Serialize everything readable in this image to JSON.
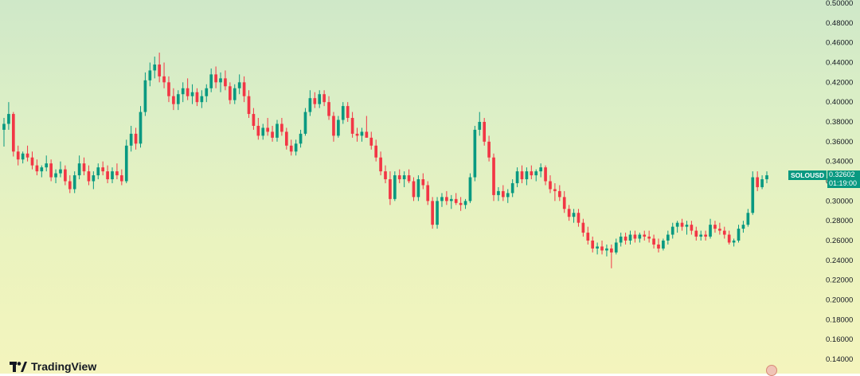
{
  "branding": {
    "logo_text": "TradingView",
    "logo_icon": "tradingview-logo-icon"
  },
  "price_label": {
    "symbol": "SOLOUSD",
    "price": "0.32602",
    "countdown": "01:19:00",
    "color": "#089981"
  },
  "colors": {
    "up": "#089981",
    "down": "#f23645",
    "axis_text": "#131722"
  },
  "chart_data": {
    "type": "candlestick",
    "title": "",
    "symbol": "SOLOUSD",
    "y_axis": {
      "position": "right",
      "ylim": [
        0.13,
        0.5
      ],
      "ticks": [
        "0.50000",
        "0.48000",
        "0.46000",
        "0.44000",
        "0.42000",
        "0.40000",
        "0.38000",
        "0.36000",
        "0.34000",
        "0.32000",
        "0.30000",
        "0.28000",
        "0.26000",
        "0.24000",
        "0.22000",
        "0.20000",
        "0.18000",
        "0.16000",
        "0.14000"
      ]
    },
    "grid": false,
    "last_price": 0.32602,
    "candles_ohlc": [
      [
        0.372,
        0.384,
        0.355,
        0.378
      ],
      [
        0.378,
        0.4,
        0.372,
        0.388
      ],
      [
        0.388,
        0.39,
        0.345,
        0.35
      ],
      [
        0.35,
        0.356,
        0.336,
        0.342
      ],
      [
        0.342,
        0.35,
        0.338,
        0.348
      ],
      [
        0.348,
        0.356,
        0.34,
        0.344
      ],
      [
        0.344,
        0.35,
        0.332,
        0.336
      ],
      [
        0.336,
        0.342,
        0.326,
        0.33
      ],
      [
        0.33,
        0.336,
        0.324,
        0.334
      ],
      [
        0.334,
        0.346,
        0.33,
        0.338
      ],
      [
        0.338,
        0.342,
        0.32,
        0.324
      ],
      [
        0.324,
        0.332,
        0.318,
        0.328
      ],
      [
        0.328,
        0.34,
        0.324,
        0.332
      ],
      [
        0.332,
        0.336,
        0.316,
        0.32
      ],
      [
        0.32,
        0.326,
        0.308,
        0.312
      ],
      [
        0.312,
        0.33,
        0.308,
        0.326
      ],
      [
        0.326,
        0.346,
        0.322,
        0.338
      ],
      [
        0.338,
        0.344,
        0.326,
        0.33
      ],
      [
        0.33,
        0.336,
        0.316,
        0.32
      ],
      [
        0.32,
        0.33,
        0.312,
        0.326
      ],
      [
        0.326,
        0.338,
        0.322,
        0.334
      ],
      [
        0.334,
        0.34,
        0.326,
        0.33
      ],
      [
        0.33,
        0.336,
        0.318,
        0.322
      ],
      [
        0.322,
        0.334,
        0.318,
        0.33
      ],
      [
        0.33,
        0.338,
        0.322,
        0.326
      ],
      [
        0.326,
        0.332,
        0.316,
        0.32
      ],
      [
        0.32,
        0.362,
        0.318,
        0.356
      ],
      [
        0.356,
        0.376,
        0.35,
        0.368
      ],
      [
        0.368,
        0.374,
        0.352,
        0.358
      ],
      [
        0.358,
        0.396,
        0.354,
        0.39
      ],
      [
        0.39,
        0.43,
        0.386,
        0.422
      ],
      [
        0.422,
        0.44,
        0.416,
        0.432
      ],
      [
        0.432,
        0.446,
        0.424,
        0.438
      ],
      [
        0.438,
        0.45,
        0.42,
        0.426
      ],
      [
        0.426,
        0.44,
        0.414,
        0.42
      ],
      [
        0.42,
        0.426,
        0.4,
        0.406
      ],
      [
        0.406,
        0.414,
        0.392,
        0.398
      ],
      [
        0.398,
        0.412,
        0.392,
        0.408
      ],
      [
        0.408,
        0.42,
        0.4,
        0.414
      ],
      [
        0.414,
        0.424,
        0.402,
        0.406
      ],
      [
        0.406,
        0.418,
        0.398,
        0.41
      ],
      [
        0.41,
        0.414,
        0.396,
        0.4
      ],
      [
        0.4,
        0.412,
        0.394,
        0.406
      ],
      [
        0.406,
        0.418,
        0.4,
        0.414
      ],
      [
        0.414,
        0.434,
        0.41,
        0.428
      ],
      [
        0.428,
        0.436,
        0.414,
        0.42
      ],
      [
        0.42,
        0.43,
        0.41,
        0.424
      ],
      [
        0.424,
        0.432,
        0.412,
        0.416
      ],
      [
        0.416,
        0.42,
        0.398,
        0.402
      ],
      [
        0.402,
        0.418,
        0.398,
        0.414
      ],
      [
        0.414,
        0.428,
        0.408,
        0.42
      ],
      [
        0.42,
        0.426,
        0.4,
        0.406
      ],
      [
        0.406,
        0.412,
        0.384,
        0.388
      ],
      [
        0.388,
        0.394,
        0.372,
        0.376
      ],
      [
        0.376,
        0.384,
        0.362,
        0.366
      ],
      [
        0.366,
        0.378,
        0.362,
        0.374
      ],
      [
        0.374,
        0.384,
        0.366,
        0.37
      ],
      [
        0.37,
        0.376,
        0.36,
        0.364
      ],
      [
        0.364,
        0.382,
        0.36,
        0.378
      ],
      [
        0.378,
        0.384,
        0.366,
        0.37
      ],
      [
        0.37,
        0.374,
        0.352,
        0.356
      ],
      [
        0.356,
        0.362,
        0.346,
        0.35
      ],
      [
        0.35,
        0.362,
        0.346,
        0.358
      ],
      [
        0.358,
        0.372,
        0.354,
        0.368
      ],
      [
        0.368,
        0.394,
        0.366,
        0.39
      ],
      [
        0.39,
        0.412,
        0.386,
        0.404
      ],
      [
        0.404,
        0.41,
        0.394,
        0.398
      ],
      [
        0.398,
        0.412,
        0.394,
        0.408
      ],
      [
        0.408,
        0.412,
        0.396,
        0.4
      ],
      [
        0.4,
        0.406,
        0.382,
        0.386
      ],
      [
        0.386,
        0.39,
        0.36,
        0.366
      ],
      [
        0.366,
        0.386,
        0.364,
        0.382
      ],
      [
        0.382,
        0.4,
        0.378,
        0.396
      ],
      [
        0.396,
        0.4,
        0.38,
        0.384
      ],
      [
        0.384,
        0.39,
        0.364,
        0.368
      ],
      [
        0.368,
        0.374,
        0.36,
        0.366
      ],
      [
        0.366,
        0.374,
        0.36,
        0.37
      ],
      [
        0.37,
        0.386,
        0.364,
        0.364
      ],
      [
        0.364,
        0.37,
        0.352,
        0.356
      ],
      [
        0.356,
        0.362,
        0.34,
        0.344
      ],
      [
        0.344,
        0.35,
        0.326,
        0.33
      ],
      [
        0.33,
        0.336,
        0.318,
        0.322
      ],
      [
        0.322,
        0.33,
        0.296,
        0.302
      ],
      [
        0.302,
        0.33,
        0.3,
        0.326
      ],
      [
        0.326,
        0.332,
        0.318,
        0.322
      ],
      [
        0.322,
        0.33,
        0.314,
        0.326
      ],
      [
        0.326,
        0.332,
        0.318,
        0.32
      ],
      [
        0.32,
        0.324,
        0.3,
        0.304
      ],
      [
        0.304,
        0.326,
        0.3,
        0.322
      ],
      [
        0.322,
        0.328,
        0.312,
        0.316
      ],
      [
        0.316,
        0.32,
        0.296,
        0.3
      ],
      [
        0.3,
        0.304,
        0.272,
        0.276
      ],
      [
        0.276,
        0.304,
        0.272,
        0.3
      ],
      [
        0.3,
        0.308,
        0.294,
        0.304
      ],
      [
        0.304,
        0.31,
        0.296,
        0.3
      ],
      [
        0.3,
        0.306,
        0.292,
        0.302
      ],
      [
        0.302,
        0.308,
        0.296,
        0.298
      ],
      [
        0.298,
        0.304,
        0.29,
        0.296
      ],
      [
        0.296,
        0.302,
        0.292,
        0.3
      ],
      [
        0.3,
        0.328,
        0.298,
        0.324
      ],
      [
        0.324,
        0.376,
        0.32,
        0.372
      ],
      [
        0.372,
        0.39,
        0.366,
        0.38
      ],
      [
        0.38,
        0.384,
        0.356,
        0.36
      ],
      [
        0.36,
        0.366,
        0.34,
        0.344
      ],
      [
        0.344,
        0.348,
        0.3,
        0.306
      ],
      [
        0.306,
        0.314,
        0.3,
        0.31
      ],
      [
        0.31,
        0.316,
        0.3,
        0.304
      ],
      [
        0.304,
        0.312,
        0.298,
        0.308
      ],
      [
        0.308,
        0.322,
        0.304,
        0.318
      ],
      [
        0.318,
        0.334,
        0.314,
        0.33
      ],
      [
        0.33,
        0.336,
        0.318,
        0.322
      ],
      [
        0.322,
        0.334,
        0.316,
        0.33
      ],
      [
        0.33,
        0.336,
        0.322,
        0.326
      ],
      [
        0.326,
        0.332,
        0.32,
        0.33
      ],
      [
        0.33,
        0.338,
        0.324,
        0.334
      ],
      [
        0.334,
        0.336,
        0.316,
        0.32
      ],
      [
        0.32,
        0.326,
        0.308,
        0.312
      ],
      [
        0.312,
        0.318,
        0.3,
        0.31
      ],
      [
        0.31,
        0.316,
        0.3,
        0.304
      ],
      [
        0.304,
        0.31,
        0.288,
        0.292
      ],
      [
        0.292,
        0.296,
        0.28,
        0.284
      ],
      [
        0.284,
        0.292,
        0.278,
        0.288
      ],
      [
        0.288,
        0.292,
        0.274,
        0.278
      ],
      [
        0.278,
        0.282,
        0.264,
        0.268
      ],
      [
        0.268,
        0.274,
        0.256,
        0.26
      ],
      [
        0.26,
        0.264,
        0.248,
        0.252
      ],
      [
        0.252,
        0.258,
        0.246,
        0.254
      ],
      [
        0.254,
        0.26,
        0.246,
        0.25
      ],
      [
        0.25,
        0.256,
        0.244,
        0.252
      ],
      [
        0.252,
        0.256,
        0.232,
        0.248
      ],
      [
        0.248,
        0.262,
        0.246,
        0.258
      ],
      [
        0.258,
        0.268,
        0.254,
        0.264
      ],
      [
        0.264,
        0.268,
        0.256,
        0.26
      ],
      [
        0.26,
        0.27,
        0.256,
        0.266
      ],
      [
        0.266,
        0.27,
        0.258,
        0.262
      ],
      [
        0.262,
        0.268,
        0.258,
        0.266
      ],
      [
        0.266,
        0.27,
        0.26,
        0.264
      ],
      [
        0.264,
        0.27,
        0.258,
        0.262
      ],
      [
        0.262,
        0.266,
        0.252,
        0.256
      ],
      [
        0.256,
        0.262,
        0.248,
        0.252
      ],
      [
        0.252,
        0.262,
        0.25,
        0.26
      ],
      [
        0.26,
        0.27,
        0.256,
        0.266
      ],
      [
        0.266,
        0.278,
        0.262,
        0.274
      ],
      [
        0.274,
        0.28,
        0.268,
        0.278
      ],
      [
        0.278,
        0.282,
        0.27,
        0.274
      ],
      [
        0.274,
        0.28,
        0.266,
        0.276
      ],
      [
        0.276,
        0.28,
        0.266,
        0.27
      ],
      [
        0.27,
        0.274,
        0.26,
        0.264
      ],
      [
        0.264,
        0.27,
        0.26,
        0.266
      ],
      [
        0.266,
        0.27,
        0.26,
        0.264
      ],
      [
        0.264,
        0.282,
        0.262,
        0.276
      ],
      [
        0.276,
        0.28,
        0.268,
        0.272
      ],
      [
        0.272,
        0.278,
        0.266,
        0.27
      ],
      [
        0.27,
        0.274,
        0.262,
        0.266
      ],
      [
        0.266,
        0.27,
        0.256,
        0.258
      ],
      [
        0.258,
        0.262,
        0.254,
        0.26
      ],
      [
        0.26,
        0.276,
        0.258,
        0.272
      ],
      [
        0.272,
        0.28,
        0.268,
        0.276
      ],
      [
        0.276,
        0.292,
        0.274,
        0.288
      ],
      [
        0.288,
        0.33,
        0.286,
        0.324
      ],
      [
        0.324,
        0.33,
        0.31,
        0.314
      ],
      [
        0.314,
        0.326,
        0.312,
        0.322
      ],
      [
        0.322,
        0.33,
        0.318,
        0.326
      ]
    ]
  }
}
